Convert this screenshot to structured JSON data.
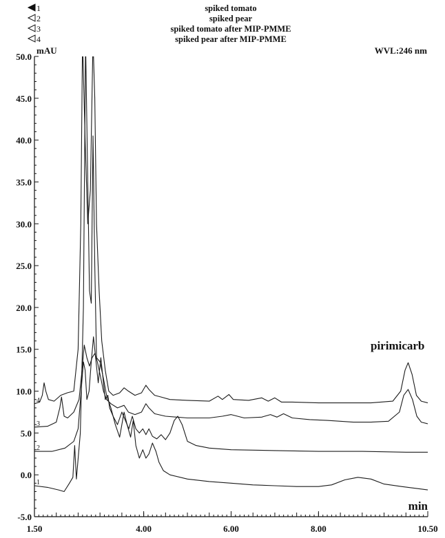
{
  "chart_data": {
    "type": "line",
    "legend": [
      {
        "id": "1",
        "name": "spiked tomato",
        "marker": "filled-triangle"
      },
      {
        "id": "2",
        "name": "spiked pear",
        "marker": "open-triangle"
      },
      {
        "id": "3",
        "name": "spiked tomato after MIP-PMME",
        "marker": "open-triangle"
      },
      {
        "id": "4",
        "name": "spiked pear after MIP-PMME",
        "marker": "open-triangle"
      }
    ],
    "ylabel": "mAU",
    "xlabel": "min",
    "wavelength_label": "WVL:246 nm",
    "annotation": "pirimicarb",
    "xlim": [
      1.5,
      10.5
    ],
    "ylim": [
      -5.0,
      50.0
    ],
    "xticks": [
      1.5,
      4.0,
      6.0,
      8.0,
      10.5
    ],
    "xtick_labels": [
      "1.50",
      "4.00",
      "6.00",
      "8.00",
      "10.50"
    ],
    "yticks": [
      -5.0,
      0.0,
      5.0,
      10.0,
      15.0,
      20.0,
      25.0,
      30.0,
      35.0,
      40.0,
      45.0,
      50.0
    ],
    "ytick_labels": [
      "-5.0",
      "0.0",
      "5.0",
      "10.0",
      "15.0",
      "20.0",
      "25.0",
      "30.0",
      "35.0",
      "40.0",
      "45.0",
      "50.0"
    ],
    "series": [
      {
        "name": "1",
        "points": [
          [
            1.5,
            -1.3
          ],
          [
            1.8,
            -1.5
          ],
          [
            2.05,
            -1.8
          ],
          [
            2.18,
            -2.0
          ],
          [
            2.3,
            -1.0
          ],
          [
            2.38,
            -0.3
          ],
          [
            2.42,
            3.5
          ],
          [
            2.46,
            -0.5
          ],
          [
            2.55,
            5.0
          ],
          [
            2.62,
            20.0
          ],
          [
            2.67,
            52.0
          ],
          [
            2.72,
            35.0
          ],
          [
            2.76,
            22.0
          ],
          [
            2.8,
            20.5
          ],
          [
            2.84,
            40.5
          ],
          [
            2.88,
            25.0
          ],
          [
            2.92,
            14.0
          ],
          [
            3.0,
            13.5
          ],
          [
            3.08,
            11.5
          ],
          [
            3.15,
            9.5
          ],
          [
            3.25,
            8.0
          ],
          [
            3.35,
            6.0
          ],
          [
            3.45,
            4.5
          ],
          [
            3.55,
            7.5
          ],
          [
            3.62,
            6.0
          ],
          [
            3.7,
            4.5
          ],
          [
            3.76,
            6.5
          ],
          [
            3.82,
            3.5
          ],
          [
            3.9,
            2.0
          ],
          [
            3.98,
            3.0
          ],
          [
            4.05,
            2.0
          ],
          [
            4.12,
            2.5
          ],
          [
            4.2,
            3.8
          ],
          [
            4.28,
            2.8
          ],
          [
            4.35,
            1.5
          ],
          [
            4.45,
            0.5
          ],
          [
            4.6,
            0.0
          ],
          [
            5.0,
            -0.5
          ],
          [
            5.5,
            -0.8
          ],
          [
            6.0,
            -1.0
          ],
          [
            6.5,
            -1.2
          ],
          [
            7.0,
            -1.3
          ],
          [
            7.5,
            -1.4
          ],
          [
            8.0,
            -1.4
          ],
          [
            8.3,
            -1.2
          ],
          [
            8.6,
            -0.6
          ],
          [
            8.9,
            -0.3
          ],
          [
            9.2,
            -0.5
          ],
          [
            9.5,
            -1.1
          ],
          [
            9.9,
            -1.4
          ],
          [
            10.5,
            -1.8
          ]
        ]
      },
      {
        "name": "2",
        "points": [
          [
            1.5,
            2.8
          ],
          [
            1.9,
            2.8
          ],
          [
            2.2,
            3.2
          ],
          [
            2.4,
            4.0
          ],
          [
            2.5,
            5.5
          ],
          [
            2.56,
            9.5
          ],
          [
            2.62,
            13.5
          ],
          [
            2.66,
            12.5
          ],
          [
            2.7,
            9.0
          ],
          [
            2.75,
            10.0
          ],
          [
            2.8,
            13.5
          ],
          [
            2.85,
            16.5
          ],
          [
            2.9,
            14.0
          ],
          [
            2.96,
            11.0
          ],
          [
            3.02,
            14.0
          ],
          [
            3.08,
            11.0
          ],
          [
            3.12,
            9.0
          ],
          [
            3.18,
            9.5
          ],
          [
            3.22,
            8.0
          ],
          [
            3.3,
            7.0
          ],
          [
            3.4,
            6.0
          ],
          [
            3.5,
            7.5
          ],
          [
            3.58,
            6.5
          ],
          [
            3.66,
            5.5
          ],
          [
            3.74,
            7.0
          ],
          [
            3.82,
            5.5
          ],
          [
            3.9,
            5.0
          ],
          [
            3.98,
            5.5
          ],
          [
            4.05,
            4.8
          ],
          [
            4.12,
            5.5
          ],
          [
            4.2,
            4.6
          ],
          [
            4.3,
            4.3
          ],
          [
            4.4,
            4.8
          ],
          [
            4.5,
            4.2
          ],
          [
            4.6,
            5.0
          ],
          [
            4.7,
            6.5
          ],
          [
            4.78,
            7.0
          ],
          [
            4.88,
            6.0
          ],
          [
            5.0,
            4.0
          ],
          [
            5.2,
            3.5
          ],
          [
            5.5,
            3.2
          ],
          [
            6.0,
            3.0
          ],
          [
            7.0,
            2.9
          ],
          [
            8.0,
            2.8
          ],
          [
            9.0,
            2.8
          ],
          [
            10.0,
            2.7
          ],
          [
            10.5,
            2.7
          ]
        ]
      },
      {
        "name": "3",
        "points": [
          [
            1.5,
            5.7
          ],
          [
            1.8,
            5.8
          ],
          [
            2.0,
            6.3
          ],
          [
            2.08,
            8.0
          ],
          [
            2.12,
            9.3
          ],
          [
            2.18,
            7.0
          ],
          [
            2.26,
            6.8
          ],
          [
            2.4,
            7.5
          ],
          [
            2.52,
            9.0
          ],
          [
            2.58,
            12.0
          ],
          [
            2.64,
            15.5
          ],
          [
            2.7,
            14.0
          ],
          [
            2.76,
            13.0
          ],
          [
            2.82,
            14.0
          ],
          [
            2.88,
            14.5
          ],
          [
            2.94,
            13.5
          ],
          [
            3.0,
            12.0
          ],
          [
            3.08,
            10.0
          ],
          [
            3.15,
            9.0
          ],
          [
            3.25,
            8.5
          ],
          [
            3.4,
            8.0
          ],
          [
            3.55,
            8.3
          ],
          [
            3.65,
            7.5
          ],
          [
            3.8,
            7.2
          ],
          [
            3.95,
            7.5
          ],
          [
            4.05,
            8.5
          ],
          [
            4.12,
            8.0
          ],
          [
            4.25,
            7.3
          ],
          [
            4.5,
            7.0
          ],
          [
            5.0,
            6.8
          ],
          [
            5.5,
            6.8
          ],
          [
            5.8,
            7.0
          ],
          [
            6.0,
            7.2
          ],
          [
            6.3,
            6.8
          ],
          [
            6.7,
            6.9
          ],
          [
            6.9,
            7.2
          ],
          [
            7.05,
            6.9
          ],
          [
            7.2,
            7.3
          ],
          [
            7.4,
            6.8
          ],
          [
            7.8,
            6.6
          ],
          [
            8.2,
            6.5
          ],
          [
            8.8,
            6.3
          ],
          [
            9.2,
            6.3
          ],
          [
            9.6,
            6.4
          ],
          [
            9.85,
            7.5
          ],
          [
            9.95,
            9.5
          ],
          [
            10.05,
            10.2
          ],
          [
            10.15,
            9.0
          ],
          [
            10.25,
            7.0
          ],
          [
            10.35,
            6.3
          ],
          [
            10.5,
            6.1
          ]
        ]
      },
      {
        "name": "4",
        "points": [
          [
            1.5,
            8.5
          ],
          [
            1.62,
            8.7
          ],
          [
            1.68,
            9.5
          ],
          [
            1.72,
            11.0
          ],
          [
            1.76,
            10.0
          ],
          [
            1.82,
            9.0
          ],
          [
            1.95,
            8.8
          ],
          [
            2.1,
            9.5
          ],
          [
            2.25,
            9.8
          ],
          [
            2.4,
            10.0
          ],
          [
            2.5,
            15.0
          ],
          [
            2.56,
            30.0
          ],
          [
            2.6,
            52.0
          ],
          [
            2.66,
            40.0
          ],
          [
            2.72,
            30.0
          ],
          [
            2.78,
            34.0
          ],
          [
            2.84,
            52.0
          ],
          [
            2.88,
            45.0
          ],
          [
            2.92,
            30.0
          ],
          [
            2.98,
            22.0
          ],
          [
            3.04,
            16.0
          ],
          [
            3.12,
            12.5
          ],
          [
            3.2,
            10.0
          ],
          [
            3.3,
            9.5
          ],
          [
            3.45,
            9.8
          ],
          [
            3.55,
            10.4
          ],
          [
            3.65,
            10.0
          ],
          [
            3.8,
            9.5
          ],
          [
            3.95,
            9.8
          ],
          [
            4.05,
            10.7
          ],
          [
            4.12,
            10.2
          ],
          [
            4.25,
            9.5
          ],
          [
            4.4,
            9.3
          ],
          [
            4.6,
            9.0
          ],
          [
            5.0,
            8.9
          ],
          [
            5.5,
            8.8
          ],
          [
            5.7,
            9.4
          ],
          [
            5.8,
            9.0
          ],
          [
            5.95,
            9.6
          ],
          [
            6.05,
            9.0
          ],
          [
            6.4,
            8.9
          ],
          [
            6.7,
            9.2
          ],
          [
            6.85,
            8.8
          ],
          [
            7.0,
            9.2
          ],
          [
            7.15,
            8.7
          ],
          [
            7.4,
            8.7
          ],
          [
            8.0,
            8.6
          ],
          [
            8.6,
            8.6
          ],
          [
            9.2,
            8.6
          ],
          [
            9.7,
            8.8
          ],
          [
            9.88,
            10.0
          ],
          [
            9.98,
            12.5
          ],
          [
            10.05,
            13.4
          ],
          [
            10.14,
            12.0
          ],
          [
            10.24,
            9.5
          ],
          [
            10.35,
            8.8
          ],
          [
            10.5,
            8.6
          ]
        ]
      }
    ]
  }
}
